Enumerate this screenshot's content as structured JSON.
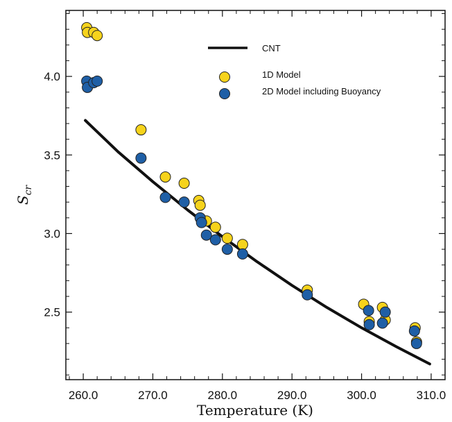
{
  "chart_data": {
    "type": "scatter",
    "xlabel": "Temperature (K)",
    "ylabel_base": "S",
    "ylabel_sub": "cr",
    "xlim": [
      257.5,
      312.0
    ],
    "ylim": [
      2.07,
      4.42
    ],
    "xticks": [
      260.0,
      270.0,
      280.0,
      290.0,
      300.0,
      310.0
    ],
    "xtick_labels": [
      "260.0",
      "270.0",
      "280.0",
      "290.0",
      "300.0",
      "310.0"
    ],
    "yticks": [
      2.5,
      3.0,
      3.5,
      4.0
    ],
    "ytick_labels": [
      "2.5",
      "3.0",
      "3.5",
      "4.0"
    ],
    "grid": false,
    "legend_position": "top-right",
    "series": [
      {
        "name": "CNT",
        "kind": "line",
        "color": "#111111",
        "x": [
          260.3,
          265,
          270,
          275,
          280,
          285,
          290,
          295,
          300,
          305,
          309.8
        ],
        "y": [
          3.72,
          3.52,
          3.33,
          3.15,
          2.98,
          2.82,
          2.67,
          2.53,
          2.4,
          2.28,
          2.17
        ]
      },
      {
        "name": "1D Model",
        "kind": "scatter",
        "color": "#f6d31c",
        "x": [
          260.5,
          260.6,
          261.5,
          262.0,
          268.3,
          271.8,
          274.5,
          276.6,
          276.8,
          277.7,
          279.0,
          280.7,
          282.9,
          292.2,
          300.3,
          301.1,
          303.0,
          303.4,
          307.7,
          307.9
        ],
        "y": [
          4.31,
          4.28,
          4.28,
          4.26,
          3.66,
          3.36,
          3.32,
          3.21,
          3.18,
          3.08,
          3.04,
          2.97,
          2.93,
          2.64,
          2.55,
          2.44,
          2.53,
          2.45,
          2.4,
          2.31
        ]
      },
      {
        "name": "2D Model including Buoyancy",
        "kind": "scatter",
        "color": "#1f5fa6",
        "x": [
          260.5,
          260.6,
          261.5,
          262.0,
          268.3,
          271.8,
          274.5,
          276.8,
          277.0,
          277.7,
          279.0,
          280.7,
          282.9,
          292.2,
          301.0,
          301.1,
          303.0,
          303.4,
          307.6,
          307.9
        ],
        "y": [
          3.97,
          3.93,
          3.96,
          3.97,
          3.48,
          3.23,
          3.2,
          3.1,
          3.07,
          2.99,
          2.96,
          2.9,
          2.87,
          2.61,
          2.51,
          2.42,
          2.43,
          2.5,
          2.38,
          2.3
        ]
      }
    ]
  }
}
